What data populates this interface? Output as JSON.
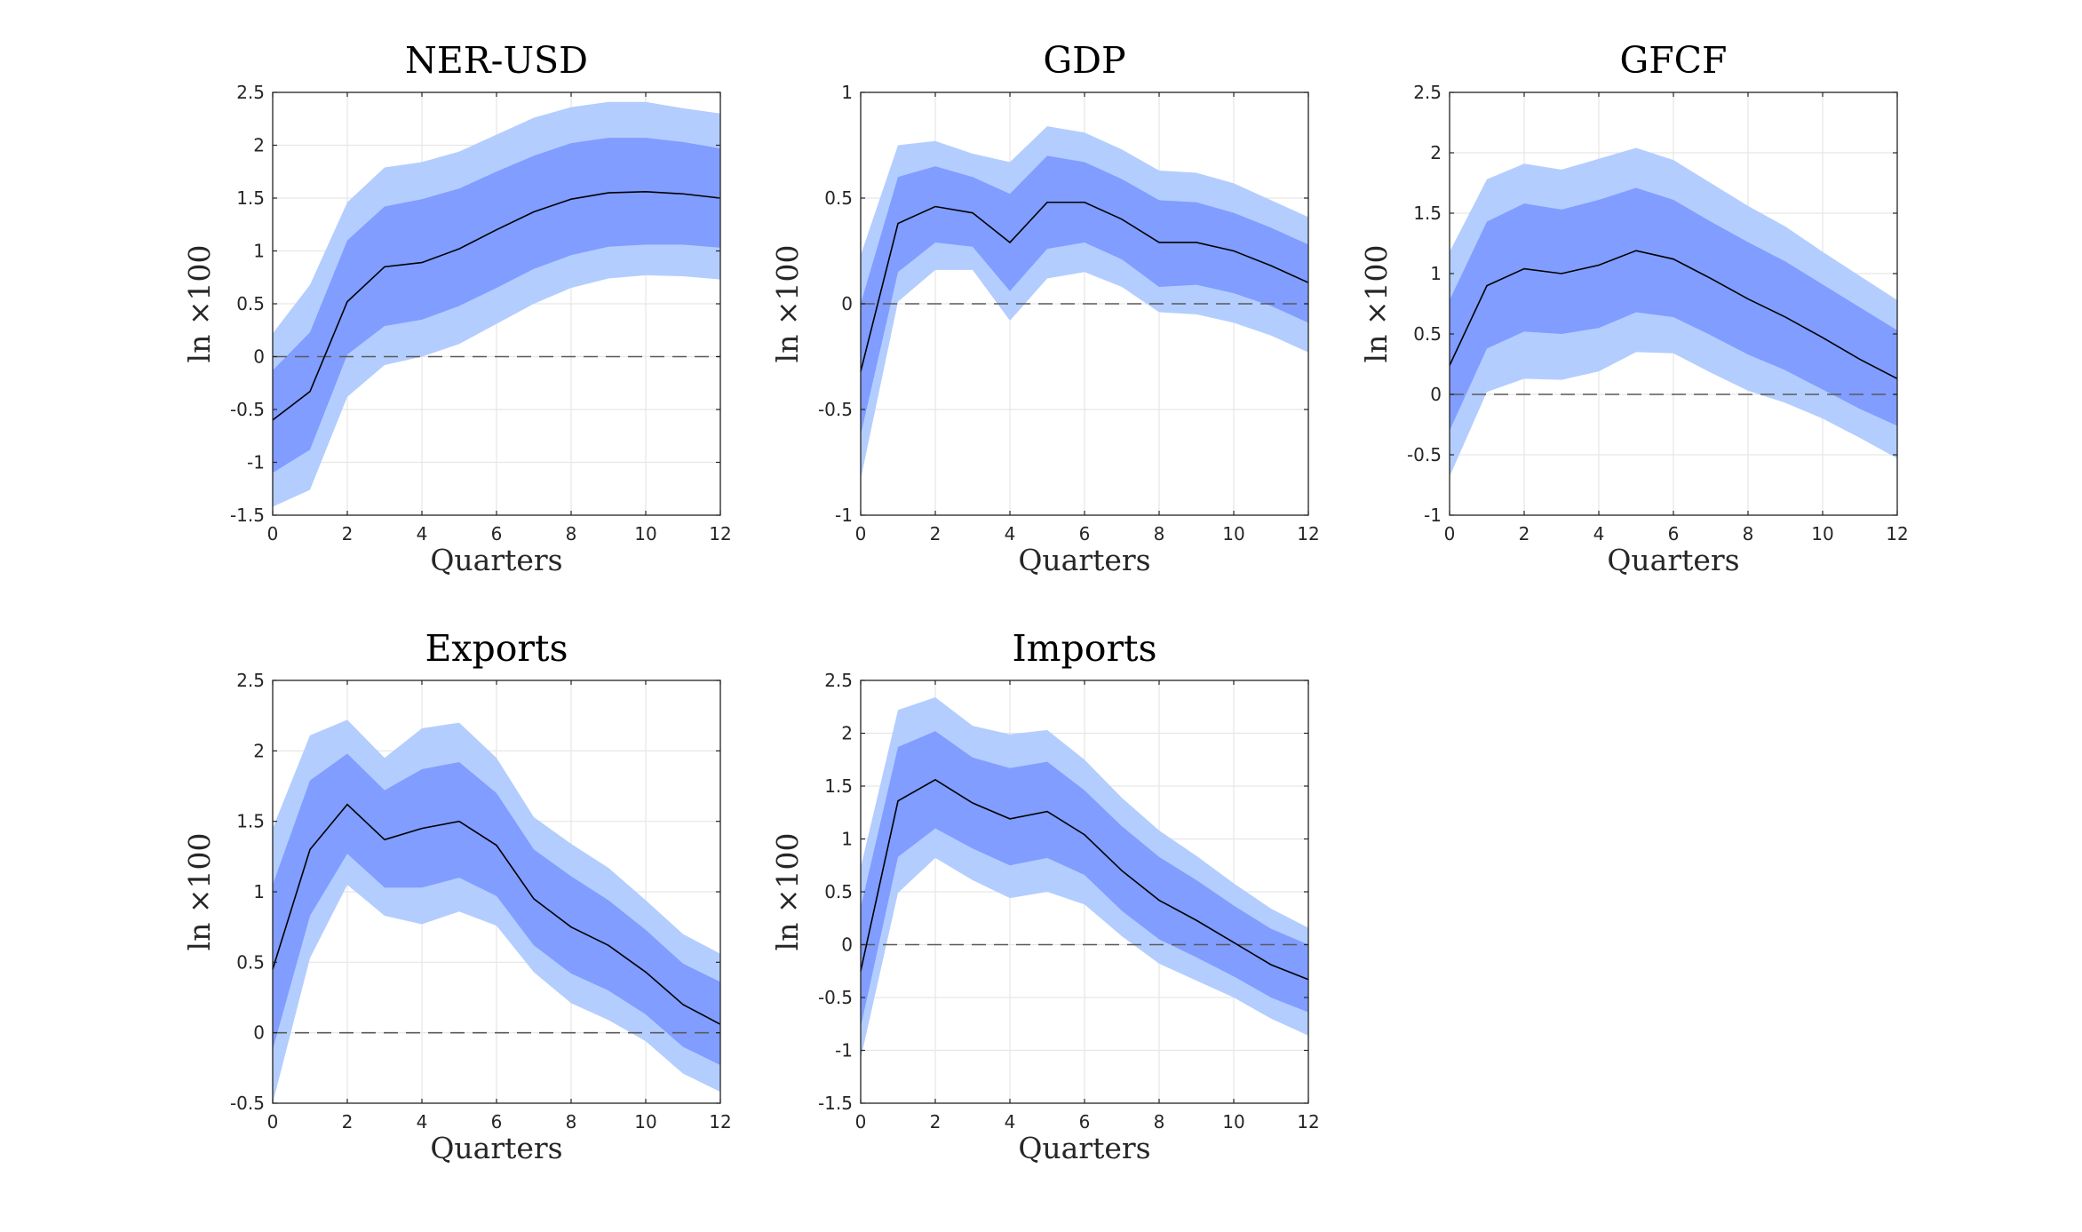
{
  "figure": {
    "band_colors": {
      "outer": "#b3cdff",
      "inner": "#809dff",
      "median": "#000000",
      "zero_line": "#5a5a5a"
    }
  },
  "chart_data": [
    {
      "type": "line",
      "title": "NER-USD",
      "xlabel": "Quarters",
      "ylabel": "ln ×100",
      "xlim": [
        0,
        12
      ],
      "ylim": [
        -1.5,
        2.5
      ],
      "xticks": [
        0,
        2,
        4,
        6,
        8,
        10,
        12
      ],
      "yticks": [
        -1.5,
        -1,
        -0.5,
        0,
        0.5,
        1,
        1.5,
        2,
        2.5
      ],
      "grid": true,
      "x": [
        0,
        1,
        2,
        3,
        4,
        5,
        6,
        7,
        8,
        9,
        10,
        11,
        12
      ],
      "series": [
        {
          "name": "median",
          "values": [
            -0.6,
            -0.33,
            0.52,
            0.85,
            0.89,
            1.02,
            1.2,
            1.37,
            1.49,
            1.55,
            1.56,
            1.54,
            1.5
          ]
        },
        {
          "name": "inner_upper",
          "values": [
            -0.13,
            0.23,
            1.1,
            1.42,
            1.49,
            1.59,
            1.75,
            1.9,
            2.02,
            2.07,
            2.07,
            2.03,
            1.97
          ]
        },
        {
          "name": "inner_lower",
          "values": [
            -1.1,
            -0.88,
            0.02,
            0.29,
            0.35,
            0.48,
            0.65,
            0.83,
            0.96,
            1.04,
            1.06,
            1.06,
            1.03
          ]
        },
        {
          "name": "outer_upper",
          "values": [
            0.22,
            0.68,
            1.46,
            1.79,
            1.84,
            1.94,
            2.1,
            2.26,
            2.36,
            2.41,
            2.41,
            2.35,
            2.3
          ]
        },
        {
          "name": "outer_lower",
          "values": [
            -1.42,
            -1.26,
            -0.38,
            -0.08,
            0.0,
            0.12,
            0.31,
            0.5,
            0.65,
            0.74,
            0.77,
            0.76,
            0.73
          ]
        }
      ]
    },
    {
      "type": "line",
      "title": "GDP",
      "xlabel": "Quarters",
      "ylabel": "ln ×100",
      "xlim": [
        0,
        12
      ],
      "ylim": [
        -1,
        1
      ],
      "xticks": [
        0,
        2,
        4,
        6,
        8,
        10,
        12
      ],
      "yticks": [
        -1,
        -0.5,
        0,
        0.5,
        1
      ],
      "grid": true,
      "x": [
        0,
        1,
        2,
        3,
        4,
        5,
        6,
        7,
        8,
        9,
        10,
        11,
        12
      ],
      "series": [
        {
          "name": "median",
          "values": [
            -0.32,
            0.38,
            0.46,
            0.43,
            0.29,
            0.48,
            0.48,
            0.4,
            0.29,
            0.29,
            0.25,
            0.18,
            0.1
          ]
        },
        {
          "name": "inner_upper",
          "values": [
            0.0,
            0.6,
            0.65,
            0.6,
            0.52,
            0.7,
            0.67,
            0.59,
            0.49,
            0.48,
            0.43,
            0.36,
            0.28
          ]
        },
        {
          "name": "inner_lower",
          "values": [
            -0.62,
            0.15,
            0.29,
            0.27,
            0.06,
            0.26,
            0.29,
            0.21,
            0.08,
            0.09,
            0.05,
            -0.01,
            -0.09
          ]
        },
        {
          "name": "outer_upper",
          "values": [
            0.23,
            0.75,
            0.77,
            0.71,
            0.67,
            0.84,
            0.81,
            0.73,
            0.63,
            0.62,
            0.57,
            0.49,
            0.41
          ]
        },
        {
          "name": "outer_lower",
          "values": [
            -0.83,
            0.01,
            0.16,
            0.16,
            -0.08,
            0.12,
            0.15,
            0.08,
            -0.04,
            -0.05,
            -0.09,
            -0.15,
            -0.23
          ]
        }
      ]
    },
    {
      "type": "line",
      "title": "GFCF",
      "xlabel": "Quarters",
      "ylabel": "ln ×100",
      "xlim": [
        0,
        12
      ],
      "ylim": [
        -1,
        2.5
      ],
      "xticks": [
        0,
        2,
        4,
        6,
        8,
        10,
        12
      ],
      "yticks": [
        -1,
        -0.5,
        0,
        0.5,
        1,
        1.5,
        2,
        2.5
      ],
      "grid": true,
      "x": [
        0,
        1,
        2,
        3,
        4,
        5,
        6,
        7,
        8,
        9,
        10,
        11,
        12
      ],
      "series": [
        {
          "name": "median",
          "values": [
            0.24,
            0.9,
            1.04,
            1.0,
            1.07,
            1.19,
            1.12,
            0.96,
            0.79,
            0.64,
            0.47,
            0.29,
            0.13
          ]
        },
        {
          "name": "inner_upper",
          "values": [
            0.78,
            1.43,
            1.58,
            1.53,
            1.61,
            1.71,
            1.61,
            1.43,
            1.26,
            1.1,
            0.91,
            0.72,
            0.53
          ]
        },
        {
          "name": "inner_lower",
          "values": [
            -0.3,
            0.38,
            0.52,
            0.5,
            0.55,
            0.68,
            0.64,
            0.49,
            0.33,
            0.2,
            0.04,
            -0.12,
            -0.26
          ]
        },
        {
          "name": "outer_upper",
          "values": [
            1.18,
            1.78,
            1.91,
            1.86,
            1.95,
            2.04,
            1.94,
            1.75,
            1.56,
            1.39,
            1.18,
            0.98,
            0.78
          ]
        },
        {
          "name": "outer_lower",
          "values": [
            -0.68,
            0.02,
            0.13,
            0.12,
            0.19,
            0.35,
            0.34,
            0.18,
            0.03,
            -0.07,
            -0.2,
            -0.36,
            -0.53
          ]
        }
      ]
    },
    {
      "type": "line",
      "title": "Exports",
      "xlabel": "Quarters",
      "ylabel": "ln ×100",
      "xlim": [
        0,
        12
      ],
      "ylim": [
        -0.5,
        2.5
      ],
      "xticks": [
        0,
        2,
        4,
        6,
        8,
        10,
        12
      ],
      "yticks": [
        -0.5,
        0,
        0.5,
        1,
        1.5,
        2,
        2.5
      ],
      "grid": true,
      "x": [
        0,
        1,
        2,
        3,
        4,
        5,
        6,
        7,
        8,
        9,
        10,
        11,
        12
      ],
      "series": [
        {
          "name": "median",
          "values": [
            0.45,
            1.3,
            1.62,
            1.37,
            1.45,
            1.5,
            1.33,
            0.95,
            0.75,
            0.62,
            0.43,
            0.2,
            0.06
          ]
        },
        {
          "name": "inner_upper",
          "values": [
            1.05,
            1.79,
            1.98,
            1.72,
            1.87,
            1.92,
            1.7,
            1.3,
            1.11,
            0.94,
            0.73,
            0.49,
            0.36
          ]
        },
        {
          "name": "inner_lower",
          "values": [
            -0.12,
            0.83,
            1.27,
            1.03,
            1.03,
            1.1,
            0.97,
            0.62,
            0.42,
            0.3,
            0.13,
            -0.1,
            -0.23
          ]
        },
        {
          "name": "outer_upper",
          "values": [
            1.45,
            2.11,
            2.22,
            1.95,
            2.16,
            2.2,
            1.95,
            1.53,
            1.34,
            1.17,
            0.94,
            0.7,
            0.56
          ]
        },
        {
          "name": "outer_lower",
          "values": [
            -0.5,
            0.53,
            1.05,
            0.83,
            0.77,
            0.86,
            0.76,
            0.43,
            0.21,
            0.09,
            -0.06,
            -0.29,
            -0.42
          ]
        }
      ]
    },
    {
      "type": "line",
      "title": "Imports",
      "xlabel": "Quarters",
      "ylabel": "ln ×100",
      "xlim": [
        0,
        12
      ],
      "ylim": [
        -1.5,
        2.5
      ],
      "xticks": [
        0,
        2,
        4,
        6,
        8,
        10,
        12
      ],
      "yticks": [
        -1.5,
        -1,
        -0.5,
        0,
        0.5,
        1,
        1.5,
        2,
        2.5
      ],
      "grid": true,
      "x": [
        0,
        1,
        2,
        3,
        4,
        5,
        6,
        7,
        8,
        9,
        10,
        11,
        12
      ],
      "series": [
        {
          "name": "median",
          "values": [
            -0.25,
            1.36,
            1.56,
            1.34,
            1.19,
            1.26,
            1.04,
            0.7,
            0.42,
            0.23,
            0.02,
            -0.19,
            -0.33
          ]
        },
        {
          "name": "inner_upper",
          "values": [
            0.35,
            1.87,
            2.02,
            1.77,
            1.67,
            1.73,
            1.46,
            1.12,
            0.83,
            0.61,
            0.37,
            0.15,
            0.0
          ]
        },
        {
          "name": "inner_lower",
          "values": [
            -0.78,
            0.83,
            1.1,
            0.91,
            0.75,
            0.82,
            0.66,
            0.32,
            0.05,
            -0.12,
            -0.3,
            -0.5,
            -0.64
          ]
        },
        {
          "name": "outer_upper",
          "values": [
            0.73,
            2.22,
            2.34,
            2.07,
            1.99,
            2.03,
            1.75,
            1.39,
            1.08,
            0.84,
            0.58,
            0.34,
            0.16
          ]
        },
        {
          "name": "outer_lower",
          "values": [
            -1.08,
            0.49,
            0.82,
            0.61,
            0.44,
            0.5,
            0.38,
            0.08,
            -0.18,
            -0.34,
            -0.5,
            -0.7,
            -0.86
          ]
        }
      ]
    }
  ]
}
